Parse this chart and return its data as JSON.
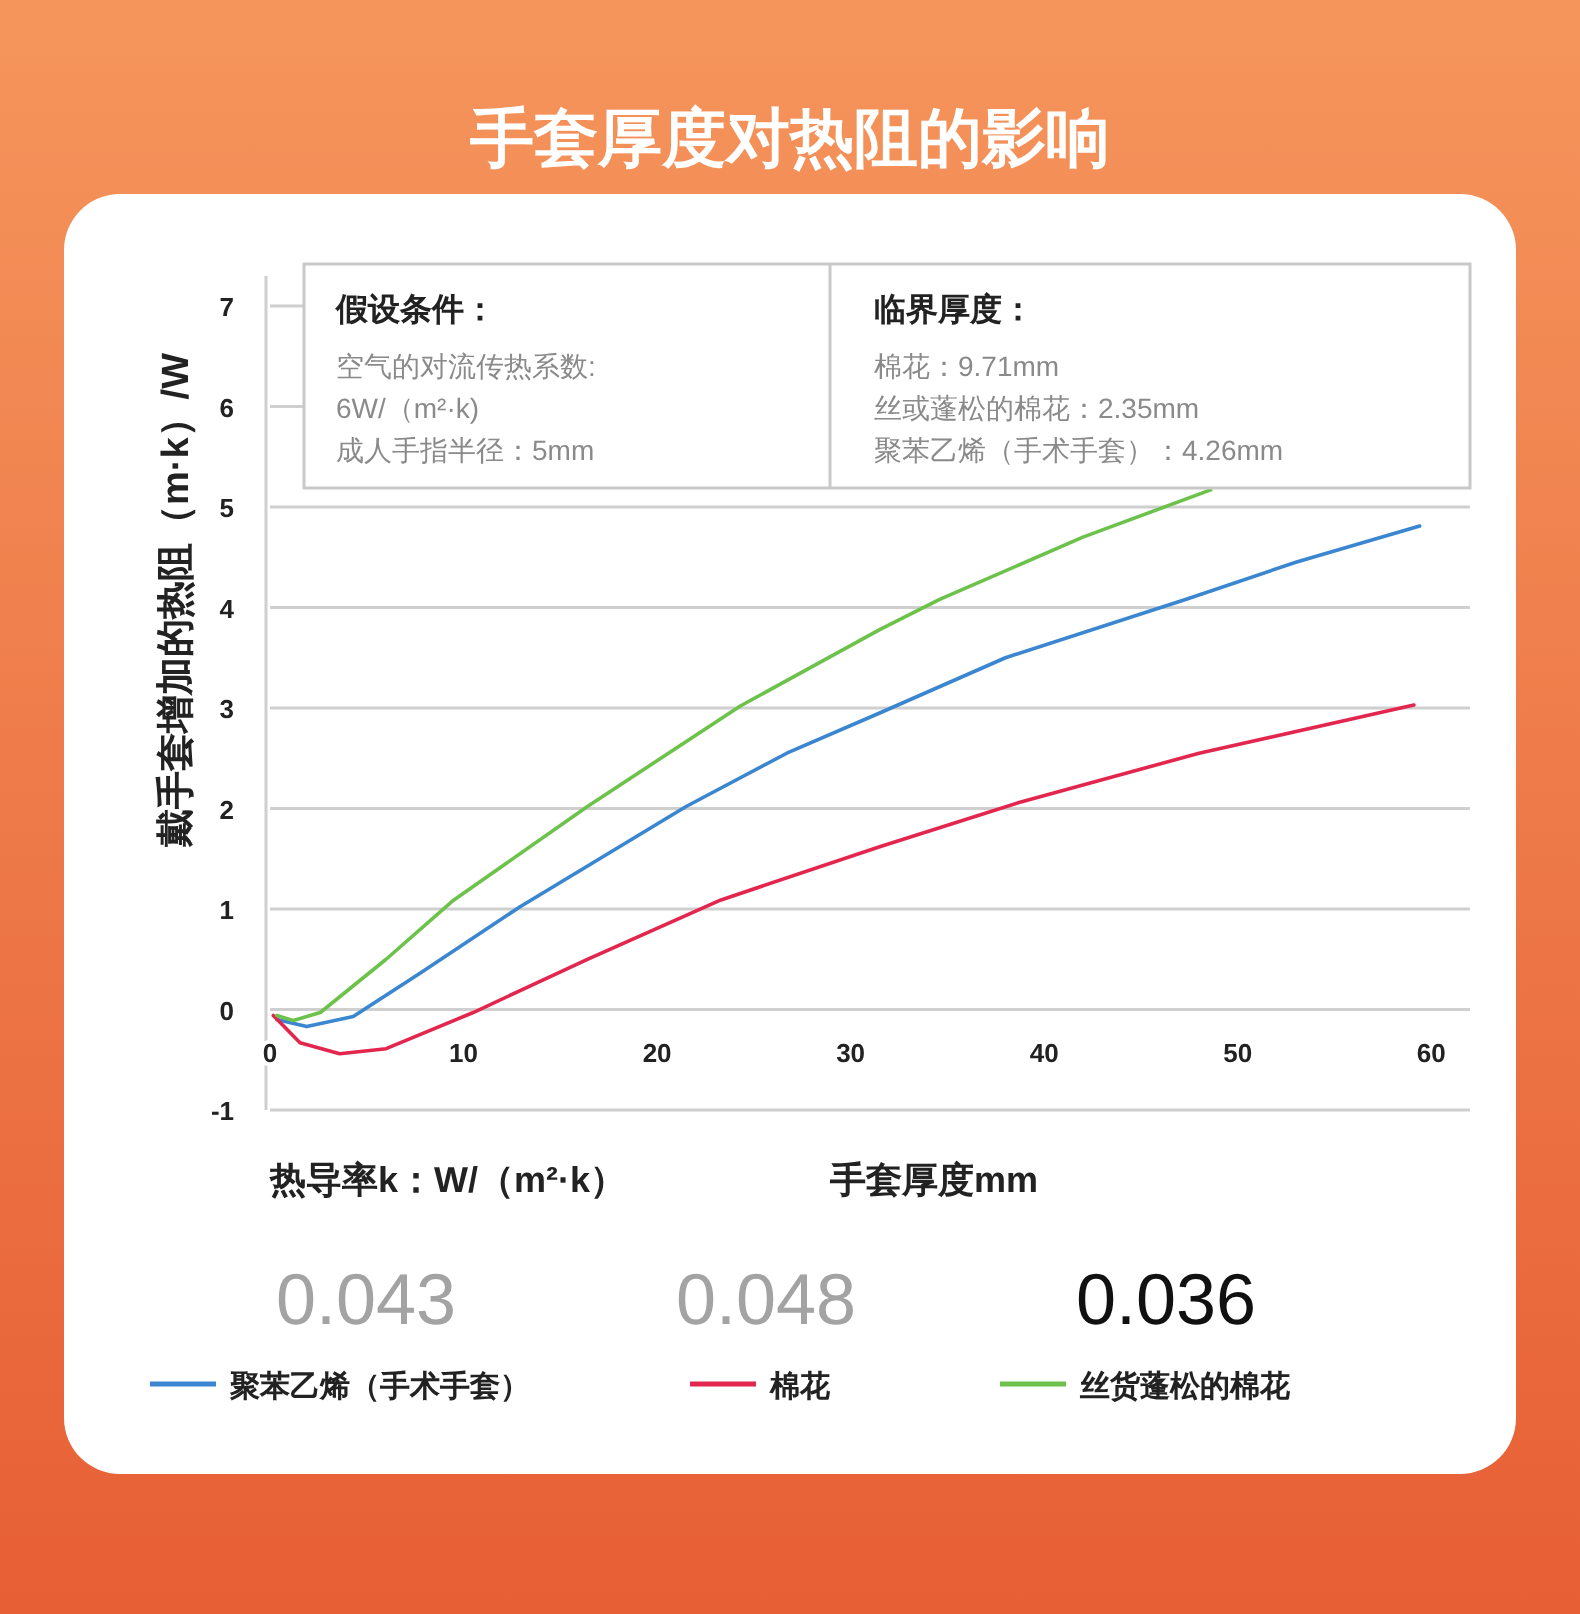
{
  "chart_data": {
    "type": "line",
    "title": "手套厚度对热阻的影响",
    "xlabel": "手套厚度mm",
    "ylabel": "戴手套增加的热阻（m·k）/W",
    "annotations": [
      "假设条件：",
      "空气的对流传热系数:",
      "6W/（m²·k)",
      "成人手指半径：5mm",
      "临界厚度：",
      "棉花：9.71mm",
      "丝或蓬松的棉花：2.35mm",
      "聚苯乙烯（手术手套）：4.26mm",
      "热导率k：W/（m²·k）",
      "0.043",
      "0.048",
      "0.036"
    ],
    "xlim": [
      0,
      62
    ],
    "ylim": [
      -1,
      7
    ],
    "xticks": [
      0,
      10,
      20,
      30,
      40,
      50,
      60
    ],
    "yticks": [
      -1,
      0,
      1,
      2,
      3,
      4,
      5,
      6,
      7
    ],
    "grid": "y",
    "legend": "bottom",
    "series": [
      {
        "name": "聚苯乙烯（手术手套）",
        "color": "#3a86d0",
        "x": [
          0.35,
          1.9,
          4.3,
          7.75,
          12.9,
          21.5,
          26.7,
          31.5,
          38,
          47.3,
          53,
          59.4
        ],
        "values": [
          -0.1,
          -0.17,
          -0.07,
          0.36,
          1.02,
          2.02,
          2.55,
          2.95,
          3.5,
          4.08,
          4.45,
          4.81
        ]
      },
      {
        "name": "棉花",
        "color": "#e2264d",
        "x": [
          0.17,
          1.55,
          3.6,
          6.0,
          10.5,
          16.4,
          23.3,
          31.5,
          38.7,
          48,
          59.1
        ],
        "values": [
          -0.06,
          -0.33,
          -0.44,
          -0.39,
          -0.03,
          0.5,
          1.09,
          1.62,
          2.06,
          2.55,
          3.03
        ]
      },
      {
        "name": "丝货蓬松的棉花",
        "color": "#6cc24a",
        "x": [
          0.35,
          1.2,
          2.6,
          6.0,
          9.5,
          16.4,
          24.3,
          31.5,
          34.6,
          42,
          48.6
        ],
        "values": [
          -0.06,
          -0.11,
          -0.03,
          0.5,
          1.09,
          2.02,
          3.02,
          3.78,
          4.08,
          4.7,
          5.17
        ]
      }
    ]
  }
}
